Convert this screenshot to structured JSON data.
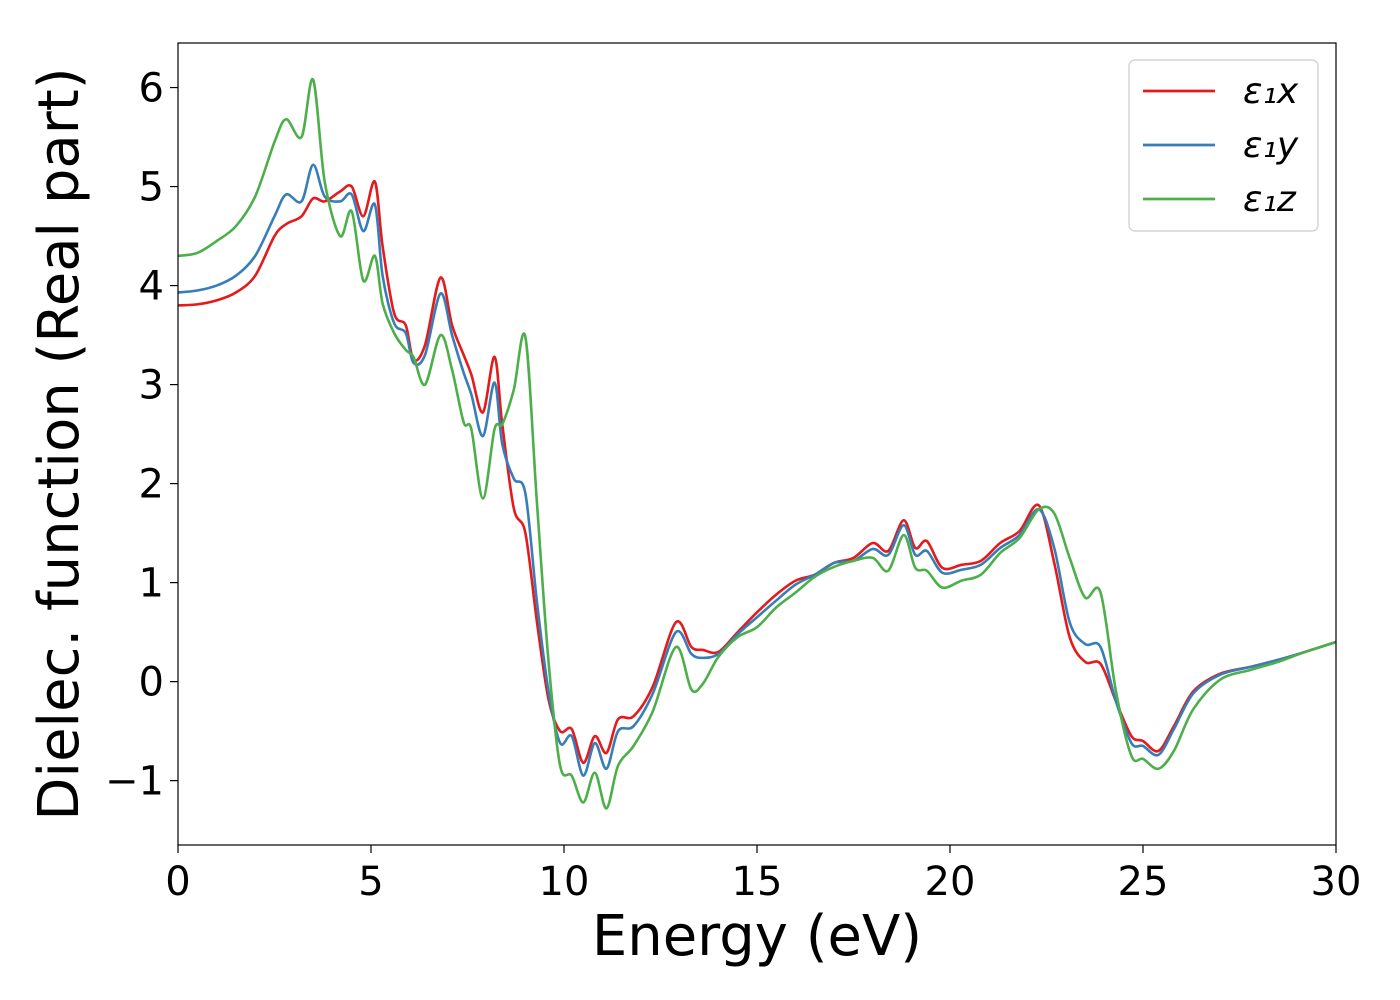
{
  "chart_data": {
    "type": "line",
    "title": "",
    "xlabel": "Energy (eV)",
    "ylabel": "Dielec. function (Real part)",
    "xlim": [
      0,
      30
    ],
    "ylim": [
      -1.65,
      6.45
    ],
    "xticks": [
      0,
      5,
      10,
      15,
      20,
      25,
      30
    ],
    "yticks": [
      -1,
      0,
      1,
      2,
      3,
      4,
      5,
      6
    ],
    "xtick_labels": [
      "0",
      "5",
      "10",
      "15",
      "20",
      "25",
      "30"
    ],
    "ytick_labels": [
      "−1",
      "0",
      "1",
      "2",
      "3",
      "4",
      "5",
      "6"
    ],
    "grid": false,
    "legend_position": "top-right",
    "x": [
      0,
      0.5,
      1,
      1.5,
      2,
      2.5,
      2.8,
      3.2,
      3.5,
      3.8,
      4.2,
      4.5,
      4.8,
      5.1,
      5.3,
      5.6,
      5.9,
      6.1,
      6.4,
      6.8,
      7.1,
      7.4,
      7.6,
      7.9,
      8.2,
      8.4,
      8.7,
      9,
      9.3,
      9.6,
      9.9,
      10.2,
      10.5,
      10.8,
      11.1,
      11.4,
      11.8,
      12.3,
      12.9,
      13.3,
      13.6,
      14,
      14.5,
      15,
      15.5,
      16,
      16.5,
      17,
      17.5,
      18,
      18.4,
      18.8,
      19.1,
      19.4,
      19.8,
      20.3,
      20.8,
      21.3,
      21.8,
      22.3,
      22.7,
      23.1,
      23.5,
      23.9,
      24.3,
      24.7,
      25,
      25.4,
      25.8,
      26.3,
      27,
      27.8,
      28.5,
      29.2,
      30
    ],
    "series": [
      {
        "name": "ε₁x",
        "color": "#e41a1c",
        "values": [
          3.8,
          3.81,
          3.85,
          3.93,
          4.1,
          4.5,
          4.62,
          4.7,
          4.88,
          4.85,
          4.95,
          5.0,
          4.7,
          5.05,
          4.4,
          3.72,
          3.6,
          3.25,
          3.4,
          4.08,
          3.6,
          3.3,
          3.1,
          2.72,
          3.28,
          2.6,
          1.75,
          1.5,
          0.6,
          -0.18,
          -0.5,
          -0.48,
          -0.82,
          -0.55,
          -0.72,
          -0.38,
          -0.35,
          -0.05,
          0.6,
          0.35,
          0.32,
          0.3,
          0.5,
          0.7,
          0.88,
          1.02,
          1.08,
          1.2,
          1.25,
          1.4,
          1.32,
          1.63,
          1.35,
          1.42,
          1.15,
          1.18,
          1.22,
          1.4,
          1.52,
          1.78,
          1.2,
          0.45,
          0.2,
          0.18,
          -0.2,
          -0.55,
          -0.6,
          -0.7,
          -0.45,
          -0.1,
          0.08,
          0.15,
          0.22,
          0.3,
          0.4
        ]
      },
      {
        "name": "ε₁y",
        "color": "#377eb8",
        "values": [
          3.93,
          3.95,
          4.0,
          4.1,
          4.3,
          4.7,
          4.92,
          4.85,
          5.22,
          4.9,
          4.85,
          4.92,
          4.55,
          4.82,
          4.1,
          3.62,
          3.52,
          3.22,
          3.3,
          3.92,
          3.5,
          3.12,
          2.9,
          2.48,
          3.02,
          2.4,
          2.05,
          1.9,
          0.8,
          -0.1,
          -0.62,
          -0.55,
          -0.95,
          -0.62,
          -0.88,
          -0.5,
          -0.45,
          -0.12,
          0.5,
          0.28,
          0.24,
          0.28,
          0.48,
          0.65,
          0.82,
          0.98,
          1.08,
          1.2,
          1.22,
          1.34,
          1.28,
          1.58,
          1.28,
          1.32,
          1.1,
          1.13,
          1.18,
          1.35,
          1.48,
          1.74,
          1.35,
          0.6,
          0.38,
          0.35,
          -0.2,
          -0.62,
          -0.65,
          -0.74,
          -0.48,
          -0.12,
          0.07,
          0.15,
          0.22,
          0.3,
          0.4
        ]
      },
      {
        "name": "ε₁z",
        "color": "#4daf4a",
        "values": [
          4.3,
          4.33,
          4.45,
          4.6,
          4.9,
          5.45,
          5.68,
          5.5,
          6.08,
          5.05,
          4.5,
          4.75,
          4.05,
          4.3,
          3.82,
          3.52,
          3.35,
          3.28,
          3.0,
          3.5,
          3.15,
          2.62,
          2.55,
          1.85,
          2.55,
          2.6,
          2.95,
          3.48,
          1.8,
          0.2,
          -0.85,
          -0.95,
          -1.22,
          -0.92,
          -1.28,
          -0.85,
          -0.65,
          -0.3,
          0.35,
          -0.08,
          -0.02,
          0.25,
          0.45,
          0.55,
          0.75,
          0.9,
          1.06,
          1.16,
          1.22,
          1.25,
          1.12,
          1.48,
          1.15,
          1.12,
          0.95,
          1.02,
          1.08,
          1.3,
          1.45,
          1.74,
          1.7,
          1.25,
          0.85,
          0.9,
          -0.1,
          -0.75,
          -0.78,
          -0.88,
          -0.7,
          -0.28,
          0.02,
          0.12,
          0.2,
          0.3,
          0.4
        ]
      }
    ]
  }
}
